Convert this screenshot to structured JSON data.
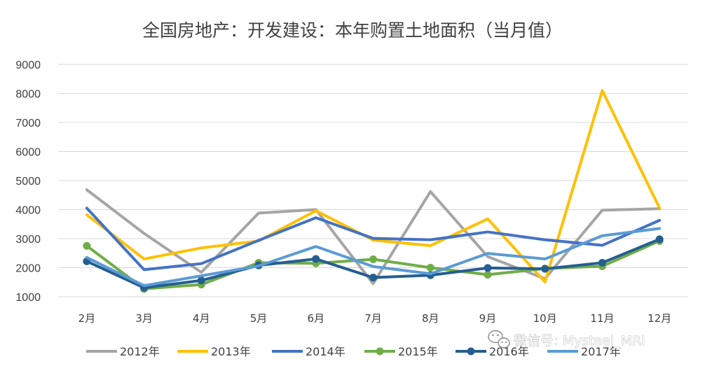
{
  "chart_data": {
    "type": "line",
    "title": "全国房地产：开发建设：本年购置土地面积（当月值）",
    "xlabel": "",
    "ylabel": "",
    "ylim": [
      1000,
      9000
    ],
    "yticks": [
      9000,
      8000,
      7000,
      6000,
      5000,
      4000,
      3000,
      2000,
      1000
    ],
    "grid": true,
    "legend_position": "bottom",
    "categories": [
      "2月",
      "3月",
      "4月",
      "5月",
      "6月",
      "7月",
      "8月",
      "9月",
      "10月",
      "11月",
      "12月"
    ],
    "series": [
      {
        "name": "2012年",
        "color": "#a5a5a5",
        "markers": false,
        "values": [
          4680,
          3180,
          1840,
          3880,
          4000,
          1450,
          4620,
          2380,
          1620,
          3980,
          4030
        ]
      },
      {
        "name": "2013年",
        "color": "#ffc000",
        "markers": false,
        "values": [
          3820,
          2300,
          2680,
          2920,
          3960,
          2950,
          2760,
          3680,
          1510,
          8100,
          4050
        ]
      },
      {
        "name": "2014年",
        "color": "#4472c4",
        "markers": false,
        "values": [
          4050,
          1930,
          2140,
          2940,
          3720,
          3010,
          2960,
          3230,
          2960,
          2770,
          3630
        ]
      },
      {
        "name": "2015年",
        "color": "#70ad47",
        "markers": true,
        "values": [
          2750,
          1270,
          1420,
          2170,
          2150,
          2290,
          2000,
          1760,
          1970,
          2050,
          2920
        ]
      },
      {
        "name": "2016年",
        "color": "#255e91",
        "markers": true,
        "values": [
          2220,
          1310,
          1560,
          2080,
          2300,
          1660,
          1740,
          1990,
          1960,
          2170,
          2980
        ]
      },
      {
        "name": "2017年",
        "color": "#5b9bd5",
        "markers": false,
        "values": [
          2350,
          1380,
          1720,
          2060,
          2730,
          2040,
          1790,
          2490,
          2300,
          3100,
          3350
        ]
      }
    ]
  },
  "watermark": {
    "text": "微信号: Mysteel_MRI",
    "icon": "wechat-icon"
  }
}
